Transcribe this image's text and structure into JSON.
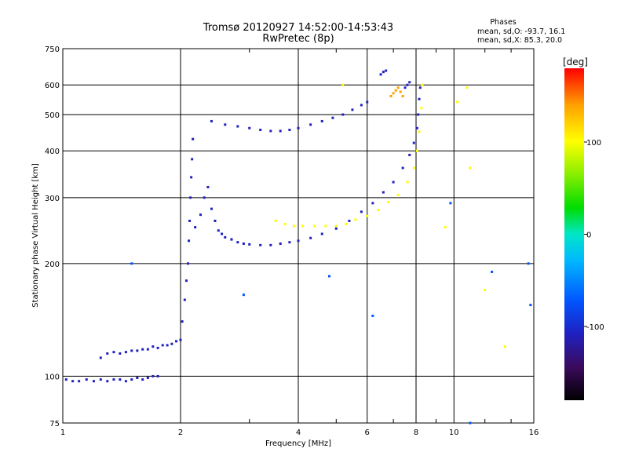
{
  "chart_data": {
    "type": "scatter",
    "title": "Tromsø 20120927 14:52:00-14:53:43",
    "subtitle": "RwPretec (8p)",
    "xlabel": "Frequency [MHz]",
    "ylabel": "Stationary phase Virtual Height [km]",
    "x_scale": "log",
    "y_scale": "log",
    "xlim": [
      1,
      16
    ],
    "ylim": [
      75,
      750
    ],
    "x_ticks": [
      1,
      2,
      4,
      6,
      8,
      10,
      16
    ],
    "y_ticks": [
      75,
      100,
      200,
      300,
      400,
      500,
      600,
      750
    ],
    "x_tick_labels": [
      "1",
      "2",
      "4",
      "6",
      "8",
      "10",
      "16"
    ],
    "y_tick_labels": [
      "75",
      "100",
      "200",
      "300",
      "400",
      "500",
      "600",
      "750"
    ],
    "grid": true,
    "minor_x_ticks": [
      3,
      5,
      7,
      9,
      12,
      14
    ],
    "stats": {
      "heading": "Phases",
      "line_o": "mean, sd,O: -93.7, 16.1",
      "line_x": "mean, sd,X:  85.3, 20.0"
    },
    "colorbar": {
      "unit_label": "[deg]",
      "range": [
        -180,
        180
      ],
      "ticks": [
        100,
        0,
        -100
      ],
      "tick_labels": [
        "100",
        "0",
        "-100"
      ]
    },
    "color_map": [
      "#000000",
      "#3b0a5c",
      "#2020c0",
      "#0055ff",
      "#00b7ff",
      "#00e6c8",
      "#00dd00",
      "#88ee00",
      "#ffff00",
      "#ffa000",
      "#ff0000"
    ],
    "traces": [
      {
        "name": "",
        "phase": -100,
        "points": [
          [
            1.02,
            98
          ],
          [
            1.06,
            97
          ],
          [
            1.1,
            97
          ],
          [
            1.15,
            98
          ],
          [
            1.2,
            97
          ],
          [
            1.25,
            98
          ],
          [
            1.3,
            97
          ],
          [
            1.35,
            98
          ],
          [
            1.4,
            98
          ],
          [
            1.45,
            97
          ],
          [
            1.5,
            98
          ],
          [
            1.55,
            99
          ],
          [
            1.6,
            98
          ],
          [
            1.65,
            99
          ],
          [
            1.7,
            100
          ],
          [
            1.75,
            100
          ]
        ]
      },
      {
        "name": "",
        "phase": -105,
        "points": [
          [
            1.25,
            112
          ],
          [
            1.3,
            115
          ],
          [
            1.35,
            116
          ],
          [
            1.4,
            115
          ],
          [
            1.45,
            116
          ],
          [
            1.5,
            117
          ],
          [
            1.55,
            117
          ],
          [
            1.6,
            118
          ],
          [
            1.65,
            118
          ],
          [
            1.7,
            120
          ],
          [
            1.75,
            119
          ],
          [
            1.8,
            121
          ],
          [
            1.85,
            121
          ],
          [
            1.9,
            122
          ],
          [
            1.95,
            124
          ],
          [
            2.0,
            125
          ]
        ]
      },
      {
        "name": "",
        "phase": -100,
        "points": [
          [
            2.02,
            140
          ],
          [
            2.05,
            160
          ],
          [
            2.07,
            180
          ],
          [
            2.09,
            200
          ],
          [
            2.1,
            230
          ],
          [
            2.11,
            260
          ],
          [
            2.12,
            300
          ],
          [
            2.13,
            340
          ],
          [
            2.14,
            380
          ],
          [
            2.15,
            430
          ]
        ]
      },
      {
        "name": "",
        "phase": -95,
        "points": [
          [
            2.18,
            250
          ],
          [
            2.25,
            270
          ],
          [
            2.3,
            300
          ],
          [
            2.35,
            320
          ],
          [
            2.4,
            280
          ],
          [
            2.45,
            260
          ],
          [
            2.5,
            245
          ],
          [
            2.55,
            240
          ],
          [
            2.6,
            235
          ],
          [
            2.7,
            232
          ]
        ]
      },
      {
        "name": "",
        "phase": -110,
        "points": [
          [
            2.7,
            232
          ],
          [
            2.8,
            228
          ],
          [
            2.9,
            226
          ],
          [
            3.0,
            225
          ],
          [
            3.2,
            224
          ],
          [
            3.4,
            224
          ],
          [
            3.6,
            226
          ],
          [
            3.8,
            228
          ],
          [
            4.0,
            230
          ],
          [
            4.3,
            234
          ],
          [
            4.6,
            240
          ],
          [
            5.0,
            248
          ],
          [
            5.4,
            260
          ],
          [
            5.8,
            275
          ],
          [
            6.2,
            290
          ],
          [
            6.6,
            310
          ],
          [
            7.0,
            330
          ],
          [
            7.4,
            360
          ],
          [
            7.7,
            390
          ],
          [
            7.9,
            420
          ],
          [
            8.05,
            460
          ],
          [
            8.1,
            500
          ],
          [
            8.15,
            550
          ],
          [
            8.2,
            590
          ]
        ]
      },
      {
        "name": "",
        "phase": 110,
        "points": [
          [
            3.5,
            260
          ],
          [
            3.7,
            255
          ],
          [
            3.9,
            252
          ],
          [
            4.1,
            252
          ],
          [
            4.4,
            252
          ],
          [
            4.7,
            252
          ],
          [
            5.0,
            252
          ],
          [
            5.3,
            255
          ],
          [
            5.6,
            262
          ],
          [
            6.0,
            268
          ],
          [
            6.4,
            278
          ],
          [
            6.8,
            292
          ],
          [
            7.2,
            305
          ],
          [
            7.6,
            330
          ],
          [
            7.9,
            360
          ],
          [
            8.05,
            400
          ],
          [
            8.15,
            450
          ],
          [
            8.25,
            520
          ],
          [
            8.3,
            600
          ]
        ]
      },
      {
        "name": "",
        "phase": -115,
        "points": [
          [
            2.4,
            480
          ],
          [
            2.6,
            470
          ],
          [
            2.8,
            465
          ],
          [
            3.0,
            460
          ],
          [
            3.2,
            455
          ],
          [
            3.4,
            452
          ],
          [
            3.6,
            452
          ],
          [
            3.8,
            455
          ],
          [
            4.0,
            460
          ],
          [
            4.3,
            470
          ],
          [
            4.6,
            480
          ],
          [
            4.9,
            490
          ],
          [
            5.2,
            500
          ],
          [
            5.5,
            515
          ],
          [
            5.8,
            530
          ],
          [
            6.0,
            540
          ]
        ]
      },
      {
        "name": "",
        "phase": -105,
        "points": [
          [
            6.5,
            640
          ],
          [
            6.6,
            650
          ],
          [
            6.7,
            655
          ],
          [
            7.5,
            590
          ],
          [
            7.6,
            600
          ],
          [
            7.7,
            610
          ]
        ]
      },
      {
        "name": "",
        "phase": 150,
        "points": [
          [
            6.9,
            560
          ],
          [
            7.0,
            570
          ],
          [
            7.1,
            580
          ],
          [
            7.2,
            590
          ],
          [
            7.3,
            575
          ],
          [
            7.4,
            560
          ]
        ]
      },
      {
        "name": "",
        "phase": 90,
        "points": [
          [
            5.2,
            600
          ],
          [
            10.2,
            540
          ],
          [
            10.8,
            590
          ],
          [
            11.0,
            360
          ],
          [
            12.0,
            170
          ],
          [
            13.5,
            120
          ],
          [
            9.5,
            250
          ]
        ]
      },
      {
        "name": "",
        "phase": -90,
        "points": [
          [
            1.5,
            200
          ],
          [
            2.9,
            165
          ],
          [
            4.8,
            185
          ],
          [
            6.2,
            145
          ],
          [
            9.8,
            290
          ],
          [
            12.5,
            190
          ],
          [
            15.5,
            200
          ],
          [
            15.7,
            155
          ],
          [
            11.0,
            75
          ]
        ]
      }
    ]
  }
}
